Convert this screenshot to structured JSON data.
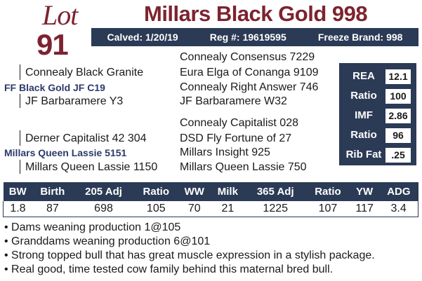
{
  "lot": {
    "word": "Lot",
    "number": "91"
  },
  "title": "Millars Black Gold 998",
  "info": {
    "calved": "Calved: 1/20/19",
    "reg": "Reg #: 19619595",
    "freeze": "Freeze Brand: 998"
  },
  "pedigree": {
    "sire_sire_sire": "Connealy Consensus 7229",
    "sire_sire": "Connealy Black Granite",
    "sire_sire_dam": "Eura Elga of Conanga 9109",
    "sire": "FF Black Gold JF C19",
    "sire_dam_sire": "Connealy Right Answer 746",
    "sire_dam": "JF Barbaramere Y3",
    "sire_dam_dam": "JF Barbaramere W32",
    "dam_sire_sire": "Connealy Capitalist 028",
    "dam_sire": "Derner Capitalist 42 304",
    "dam_sire_dam": "DSD Fly Fortune of 27",
    "dam": "Millars Queen Lassie 5151",
    "dam_dam_sire": "Millars Insight 925",
    "dam_dam": "Millars Queen Lassie 1150",
    "dam_dam_dam": "Millars Queen Lassie 750"
  },
  "carcass": [
    {
      "label": "REA",
      "value": "12.1"
    },
    {
      "label": "Ratio",
      "value": "100"
    },
    {
      "label": "IMF",
      "value": "2.86"
    },
    {
      "label": "Ratio",
      "value": "96"
    },
    {
      "label": "Rib Fat",
      "value": ".25"
    }
  ],
  "performance": {
    "headers": [
      "BW",
      "Birth",
      "205 Adj",
      "Ratio",
      "WW",
      "Milk",
      "365 Adj",
      "Ratio",
      "YW",
      "ADG"
    ],
    "values": [
      "1.8",
      "87",
      "698",
      "105",
      "70",
      "21",
      "1225",
      "107",
      "117",
      "3.4"
    ]
  },
  "notes": [
    "• Dams weaning production 1@105",
    "• Granddams weaning production 6@101",
    "• Strong topped bull that has great muscle expression in a stylish package.",
    "• Real good, time tested cow family behind this maternal bred bull."
  ],
  "colors": {
    "maroon": "#7d2330",
    "navy": "#2b3a55"
  }
}
